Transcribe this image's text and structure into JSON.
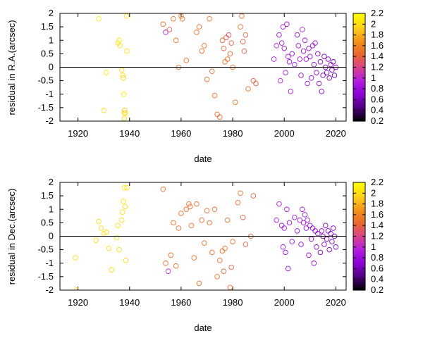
{
  "chart_data": [
    {
      "type": "scatter",
      "title": "",
      "xlabel": "date",
      "ylabel": "residual in R.A.(arcsec)",
      "xlim": [
        1913,
        2024
      ],
      "ylim": [
        -2,
        2
      ],
      "x_ticks": [
        "1920",
        "1940",
        "1960",
        "1980",
        "2000",
        "2020"
      ],
      "y_ticks": [
        "-2",
        "-1.5",
        "-1",
        "-0.5",
        "0",
        "0.5",
        "1",
        "1.5",
        "2"
      ],
      "horizontal_line_at": 0,
      "marker": "open-circle",
      "colorbar": {
        "range": [
          0.2,
          2.2
        ],
        "ticks": [
          "0.2",
          "0.4",
          "0.6",
          "0.8",
          "1",
          "1.2",
          "1.4",
          "1.6",
          "1.8",
          "2",
          "2.2"
        ],
        "palette": [
          "#000000",
          "#4b007a",
          "#8a00d4",
          "#b11fe0",
          "#d8428a",
          "#e8682f",
          "#f3931c",
          "#ffd31a",
          "#ffff00"
        ]
      },
      "points_x": [
        1928,
        1930,
        1931,
        1935.5,
        1936,
        1936.3,
        1937,
        1937.4,
        1937.6,
        1937.8,
        1937.9,
        1938,
        1938.1,
        1938.4,
        1938.8,
        1939,
        1953,
        1954,
        1955.5,
        1957,
        1958,
        1959,
        1960,
        1960.5,
        1962,
        1966,
        1967,
        1968,
        1969,
        1970,
        1971,
        1972,
        1973,
        1974,
        1975,
        1976,
        1976.5,
        1977,
        1977.5,
        1978,
        1978.5,
        1979,
        1979.5,
        1980,
        1981,
        1983,
        1983.5,
        1984,
        1984.5,
        1985,
        1986,
        1988,
        1989,
        1996,
        1997,
        1998,
        1998.5,
        1999,
        1999.5,
        2000,
        2000.5,
        2001,
        2001.5,
        2002,
        2002.5,
        2003,
        2004,
        2005,
        2005.5,
        2006,
        2006.5,
        2007,
        2007.5,
        2008,
        2008.5,
        2009,
        2009.5,
        2010,
        2010.5,
        2011,
        2011.5,
        2012,
        2012.5,
        2013,
        2013.5,
        2014,
        2014.5,
        2015,
        2015.5,
        2016,
        2016.5,
        2017,
        2017.5,
        2018,
        2018.5,
        2019,
        2019.5,
        2020
      ],
      "points_y": [
        1.8,
        -1.6,
        -0.2,
        0.9,
        1.0,
        0.8,
        -0.1,
        -0.3,
        -0.4,
        -1.0,
        -1.7,
        -1.9,
        -1.6,
        -1.7,
        1.9,
        0.6,
        1.6,
        1.3,
        1.4,
        1.8,
        1.0,
        0.0,
        1.9,
        1.8,
        0.25,
        1.3,
        1.5,
        0.6,
        0.8,
        -0.45,
        1.8,
        -0.15,
        -1.05,
        -1.75,
        -1.85,
        1.0,
        0.7,
        0.2,
        1.1,
        0.3,
        1.2,
        0.5,
        0.9,
        0.0,
        -1.3,
        1.5,
        1.9,
        0.95,
        0.6,
        1.2,
        -0.8,
        -0.5,
        -0.6,
        0.3,
        0.8,
        1.2,
        -0.5,
        0.9,
        1.5,
        0.7,
        -0.2,
        1.6,
        0.4,
        0.2,
        -0.9,
        0.5,
        0.1,
        1.2,
        0.8,
        0.3,
        -0.3,
        1.4,
        0.6,
        1.0,
        0.3,
        -0.6,
        0.7,
        0.4,
        -0.4,
        0.8,
        0.1,
        0.9,
        -0.2,
        0.5,
        -0.6,
        0.2,
        -0.9,
        -0.3,
        0.4,
        0.0,
        -0.2,
        0.3,
        -0.4,
        0.1,
        -0.1,
        0.2,
        -0.3,
        0.0
      ],
      "points_color_value": [
        2.1,
        2.0,
        2.05,
        2.0,
        2.1,
        2.0,
        2.0,
        2.0,
        1.95,
        2.1,
        2.0,
        2.0,
        1.9,
        2.0,
        2.05,
        2.0,
        1.5,
        0.9,
        1.4,
        1.5,
        1.5,
        1.5,
        1.55,
        1.5,
        1.5,
        1.5,
        1.5,
        1.5,
        1.5,
        1.5,
        1.5,
        1.5,
        1.5,
        1.5,
        1.5,
        1.45,
        1.4,
        1.5,
        1.4,
        1.5,
        1.3,
        1.5,
        1.4,
        1.5,
        1.5,
        1.5,
        1.5,
        1.4,
        1.4,
        1.4,
        1.5,
        1.4,
        1.4,
        0.9,
        1.0,
        0.8,
        1.0,
        0.9,
        0.9,
        0.8,
        0.9,
        0.9,
        0.85,
        0.8,
        0.9,
        0.8,
        0.9,
        0.8,
        0.8,
        0.85,
        0.8,
        0.9,
        0.8,
        0.85,
        0.8,
        0.85,
        0.8,
        0.8,
        0.8,
        0.8,
        0.7,
        0.8,
        0.75,
        0.7,
        0.75,
        0.7,
        0.7,
        0.65,
        0.6,
        0.7,
        0.6,
        0.65,
        0.6,
        0.7,
        0.6,
        0.65,
        0.6,
        0.7
      ]
    },
    {
      "type": "scatter",
      "title": "",
      "xlabel": "date",
      "ylabel": "residual in Dec.(arcsec)",
      "xlim": [
        1913,
        2024
      ],
      "ylim": [
        -2,
        2
      ],
      "x_ticks": [
        "1920",
        "1940",
        "1960",
        "1980",
        "2000",
        "2020"
      ],
      "y_ticks": [
        "-2",
        "-1.5",
        "-1",
        "-0.5",
        "0",
        "0.5",
        "1",
        "1.5",
        "2"
      ],
      "horizontal_line_at": 0,
      "marker": "open-circle",
      "colorbar": {
        "range": [
          0.2,
          2.2
        ],
        "ticks": [
          "0.2",
          "0.4",
          "0.6",
          "0.8",
          "1",
          "1.2",
          "1.4",
          "1.6",
          "1.8",
          "2",
          "2.2"
        ],
        "palette": [
          "#000000",
          "#4b007a",
          "#8a00d4",
          "#b11fe0",
          "#d8428a",
          "#e8682f",
          "#f3931c",
          "#ffd31a",
          "#ffff00"
        ]
      },
      "points_x": [
        1919,
        1919.5,
        1927,
        1928,
        1929,
        1930,
        1931,
        1932,
        1933,
        1935,
        1935.5,
        1936,
        1937,
        1937.3,
        1937.6,
        1938,
        1938.3,
        1938.6,
        1939,
        1953,
        1954,
        1955,
        1956,
        1957,
        1958,
        1959,
        1960,
        1962,
        1963,
        1963.5,
        1964,
        1965,
        1966,
        1967,
        1968,
        1969,
        1970,
        1971,
        1972,
        1973,
        1974,
        1975,
        1976,
        1976.5,
        1977,
        1978,
        1979,
        1979.5,
        1980,
        1982,
        1983,
        1984,
        1985,
        1987,
        1988,
        1997,
        1998,
        1999,
        1999.5,
        2000,
        2000.5,
        2001,
        2001.5,
        2002,
        2003,
        2004,
        2005,
        2006,
        2006.5,
        2007,
        2007.5,
        2008,
        2008.5,
        2009,
        2009.5,
        2010,
        2010.5,
        2011,
        2011.5,
        2012,
        2012.5,
        2013,
        2014,
        2014.5,
        2015,
        2015.5,
        2016,
        2016.5,
        2017,
        2017.5,
        2018,
        2018.5,
        2019,
        2019.5,
        2020
      ],
      "points_y": [
        -0.8,
        -2.0,
        -0.15,
        0.55,
        0.3,
        0.1,
        0.15,
        -0.45,
        -1.25,
        -0.05,
        0.4,
        -0.5,
        0.6,
        0.9,
        1.3,
        1.8,
        1.1,
        -0.9,
        1.8,
        1.75,
        -1.0,
        -1.3,
        -0.7,
        0.5,
        -1.1,
        0.3,
        0.85,
        1.0,
        1.2,
        1.1,
        0.4,
        -0.8,
        1.2,
        -1.75,
        0.6,
        -0.25,
        0.95,
        0.5,
        -0.6,
        1.0,
        -1.5,
        -0.9,
        -0.55,
        -1.3,
        -0.45,
        0.6,
        -1.9,
        -1.15,
        -0.2,
        1.25,
        1.6,
        0.7,
        -0.3,
        0.0,
        1.5,
        0.6,
        1.2,
        0.4,
        -0.4,
        0.3,
        -0.6,
        1.0,
        -1.2,
        0.5,
        -0.2,
        0.7,
        0.2,
        0.6,
        -0.3,
        1.0,
        0.5,
        0.8,
        0.3,
        0.6,
        -0.7,
        0.4,
        -0.1,
        0.3,
        -1.0,
        0.2,
        -0.4,
        0.1,
        -0.6,
        0.2,
        0.0,
        -0.3,
        0.4,
        -0.1,
        0.2,
        -0.5,
        0.1,
        -0.2,
        0.3,
        0.0,
        -0.4
      ],
      "points_color_value": [
        2.0,
        2.0,
        2.0,
        2.0,
        2.0,
        2.0,
        2.0,
        2.0,
        2.0,
        2.0,
        2.05,
        2.0,
        2.0,
        2.0,
        2.05,
        2.1,
        2.0,
        2.0,
        2.0,
        1.5,
        1.5,
        1.0,
        1.5,
        1.5,
        1.5,
        1.5,
        1.5,
        1.5,
        1.5,
        1.5,
        1.5,
        1.5,
        1.5,
        1.5,
        1.5,
        1.5,
        1.5,
        1.5,
        1.5,
        1.5,
        1.5,
        1.5,
        1.5,
        1.4,
        1.5,
        1.5,
        1.5,
        1.4,
        1.5,
        1.5,
        1.5,
        1.4,
        1.4,
        1.4,
        1.4,
        0.9,
        0.9,
        0.8,
        0.9,
        0.9,
        0.8,
        0.9,
        0.8,
        0.85,
        0.8,
        0.9,
        0.8,
        0.85,
        0.8,
        0.9,
        0.8,
        0.85,
        0.8,
        0.8,
        0.8,
        0.8,
        0.75,
        0.8,
        0.75,
        0.7,
        0.75,
        0.7,
        0.65,
        0.7,
        0.6,
        0.7,
        0.65,
        0.6,
        0.7,
        0.6,
        0.65,
        0.6,
        0.7,
        0.6,
        0.65
      ]
    }
  ]
}
